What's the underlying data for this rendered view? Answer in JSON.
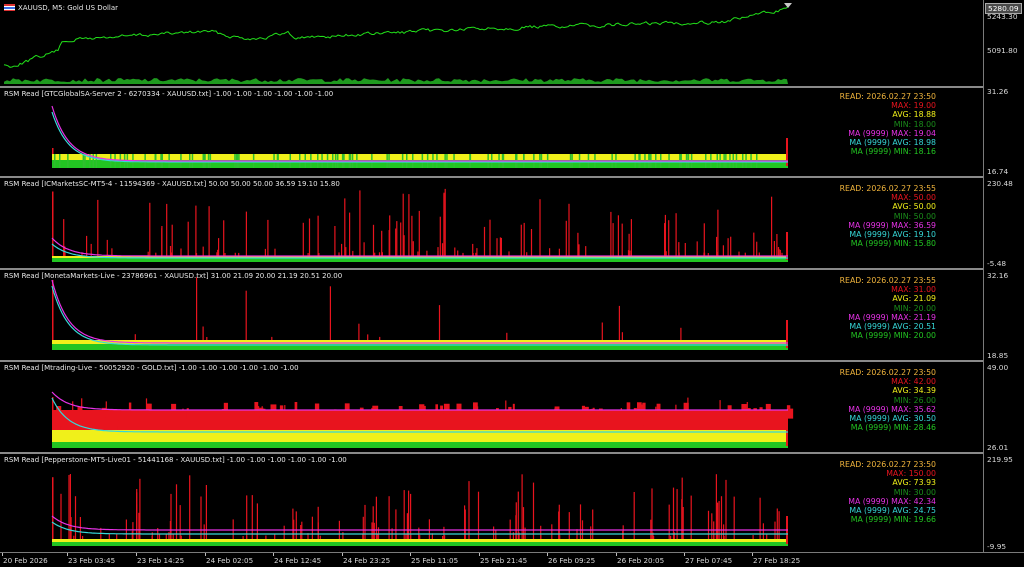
{
  "main_chart": {
    "title": "XAUUSD, M5:  Gold US Dollar",
    "price_tag": "5280.09",
    "scale": [
      "5243.30",
      "5091.80"
    ],
    "line_color": "#22e01a"
  },
  "panels": [
    {
      "title": "RSM Read [GTCGlobalSA-Server 2 - 6270334 - XAUUSD.txt] -1.00 -1.00 -1.00 -1.00 -1.00 -1.00",
      "scale_top": "31.26",
      "scale_bottom": "16.74",
      "legend": {
        "read": "READ: 2026.02.27 23:50",
        "max": "MAX: 19.00",
        "avg": "AVG: 18.88",
        "min": "MIN: 18.00",
        "ma_max": "MA (9999) MAX: 19.04",
        "ma_avg": "MA (9999) AVG: 18.98",
        "ma_min": "MA (9999) MIN: 18.16"
      }
    },
    {
      "title": "RSM Read [ICMarketsSC-MT5-4 - 11594369 - XAUUSD.txt] 50.00 50.00 50.00 36.59 19.10 15.80",
      "scale_top": "230.48",
      "scale_bottom": "-5.48",
      "legend": {
        "read": "READ: 2026.02.27 23:55",
        "max": "MAX: 50.00",
        "avg": "AVG: 50.00",
        "min": "MIN: 50.00",
        "ma_max": "MA (9999) MAX: 36.59",
        "ma_avg": "MA (9999) AVG: 19.10",
        "ma_min": "MA (9999) MIN: 15.80"
      }
    },
    {
      "title": "RSM Read [MonetaMarkets-Live - 23786961 - XAUUSD.txt] 31.00 21.09 20.00 21.19 20.51 20.00",
      "scale_top": "32.16",
      "scale_bottom": "18.85",
      "legend": {
        "read": "READ: 2026.02.27 23:55",
        "max": "MAX: 31.00",
        "avg": "AVG: 21.09",
        "min": "MIN: 20.00",
        "ma_max": "MA (9999) MAX: 21.19",
        "ma_avg": "MA (9999) AVG: 20.51",
        "ma_min": "MA (9999) MIN: 20.00"
      }
    },
    {
      "title": "RSM Read [Mtrading-Live - 50052920 - GOLD.txt] -1.00 -1.00 -1.00 -1.00 -1.00 -1.00",
      "scale_top": "49.00",
      "scale_bottom": "26.01",
      "legend": {
        "read": "READ: 2026.02.27 23:50",
        "max": "MAX: 42.00",
        "avg": "AVG: 34.39",
        "min": "MIN: 26.00",
        "ma_max": "MA (9999) MAX: 35.62",
        "ma_avg": "MA (9999) AVG: 30.50",
        "ma_min": "MA (9999) MIN: 28.46"
      }
    },
    {
      "title": "RSM Read [Pepperstone-MT5-Live01 - 51441168 - XAUUSD.txt] -1.00 -1.00 -1.00 -1.00 -1.00 -1.00",
      "scale_top": "219.95",
      "scale_bottom": "-9.95",
      "legend": {
        "read": "READ: 2026.02.27 23:50",
        "max": "MAX: 150.00",
        "avg": "AVG: 73.93",
        "min": "MIN: 30.00",
        "ma_max": "MA (9999) MAX: 42.34",
        "ma_avg": "MA (9999) AVG: 24.75",
        "ma_min": "MA (9999) MIN: 19.66"
      }
    }
  ],
  "legend_colors": {
    "read": "#f0b43c",
    "max": "#e8141e",
    "avg": "#f0f01a",
    "min": "#1a8c1a",
    "ma_max": "#e632e6",
    "ma_avg": "#36d8d8",
    "ma_min": "#22c522"
  },
  "time_axis": [
    "20 Feb 2026",
    "23 Feb 03:45",
    "23 Feb 14:25",
    "24 Feb 02:05",
    "24 Feb 12:45",
    "24 Feb 23:25",
    "25 Feb 11:05",
    "25 Feb 21:45",
    "26 Feb 09:25",
    "26 Feb 20:05",
    "27 Feb 07:45",
    "27 Feb 18:25"
  ]
}
